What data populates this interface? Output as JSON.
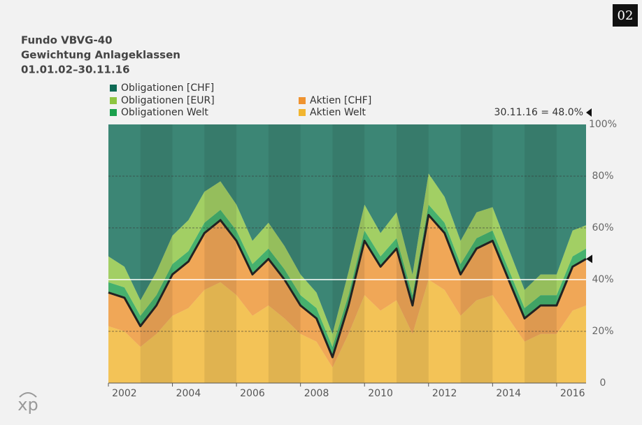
{
  "badge": "02",
  "logo": "xp",
  "chart_data": {
    "type": "stacked-area",
    "title": "Fundo VBVG-40",
    "subtitle": "Gewichtung Anlageklassen",
    "period": "01.01.02–30.11.16",
    "annotation": "30.11.16 = 48.0%",
    "annotation_value": 48,
    "reference_line": 40,
    "x": [
      2002.0,
      2002.5,
      2003.0,
      2003.5,
      2004.0,
      2004.5,
      2005.0,
      2005.5,
      2006.0,
      2006.5,
      2007.0,
      2007.5,
      2008.0,
      2008.5,
      2009.0,
      2009.5,
      2010.0,
      2010.5,
      2011.0,
      2011.5,
      2012.0,
      2012.5,
      2013.0,
      2013.5,
      2014.0,
      2014.5,
      2015.0,
      2015.5,
      2016.0,
      2016.5,
      2016.92
    ],
    "xlim": [
      2002,
      2016.92
    ],
    "xticks": [
      2002,
      2004,
      2006,
      2008,
      2010,
      2012,
      2014,
      2016
    ],
    "ylim": [
      0,
      100
    ],
    "yticks": [
      0,
      {
        "value": 20,
        "label": "20%"
      },
      {
        "value": 40,
        "label": "40%"
      },
      {
        "value": 60,
        "label": "60%"
      },
      {
        "value": 80,
        "label": "80%"
      },
      {
        "value": 100,
        "label": "100%"
      }
    ],
    "grid": true,
    "series": [
      {
        "name": "Aktien Welt",
        "color": "#f2b630",
        "values": [
          22,
          20,
          14,
          19,
          26,
          29,
          36,
          39,
          34,
          26,
          30,
          25,
          19,
          16,
          6,
          19,
          34,
          28,
          32,
          19,
          40,
          36,
          26,
          32,
          34,
          25,
          16,
          19,
          19,
          28,
          30
        ]
      },
      {
        "name": "Aktien [CHF]",
        "color": "#ef9330",
        "values": [
          13,
          13,
          8,
          11,
          16,
          18,
          22,
          24,
          21,
          16,
          18,
          15,
          11,
          9,
          4,
          11,
          21,
          17,
          20,
          11,
          25,
          22,
          16,
          20,
          21,
          15,
          9,
          11,
          11,
          17,
          18
        ]
      },
      {
        "name": "Obligationen Welt",
        "color": "#1aa04c",
        "values": [
          4,
          4,
          4,
          4,
          4,
          4,
          4,
          4,
          4,
          4,
          4,
          4,
          4,
          4,
          4,
          4,
          4,
          4,
          4,
          4,
          4,
          4,
          4,
          4,
          4,
          4,
          4,
          4,
          4,
          4,
          4
        ]
      },
      {
        "name": "Obligationen [EUR]",
        "color": "#8dc540",
        "values": [
          10,
          8,
          6,
          9,
          11,
          12,
          12,
          11,
          10,
          9,
          10,
          9,
          8,
          6,
          5,
          9,
          10,
          9,
          10,
          8,
          12,
          10,
          9,
          10,
          9,
          8,
          7,
          8,
          8,
          10,
          9
        ]
      },
      {
        "name": "Obligationen [CHF]",
        "color": "#0e6a55",
        "values": [
          51,
          55,
          68,
          57,
          43,
          37,
          26,
          22,
          31,
          45,
          38,
          47,
          58,
          65,
          81,
          57,
          31,
          42,
          34,
          58,
          19,
          28,
          45,
          34,
          32,
          48,
          64,
          58,
          58,
          41,
          39
        ]
      }
    ]
  }
}
